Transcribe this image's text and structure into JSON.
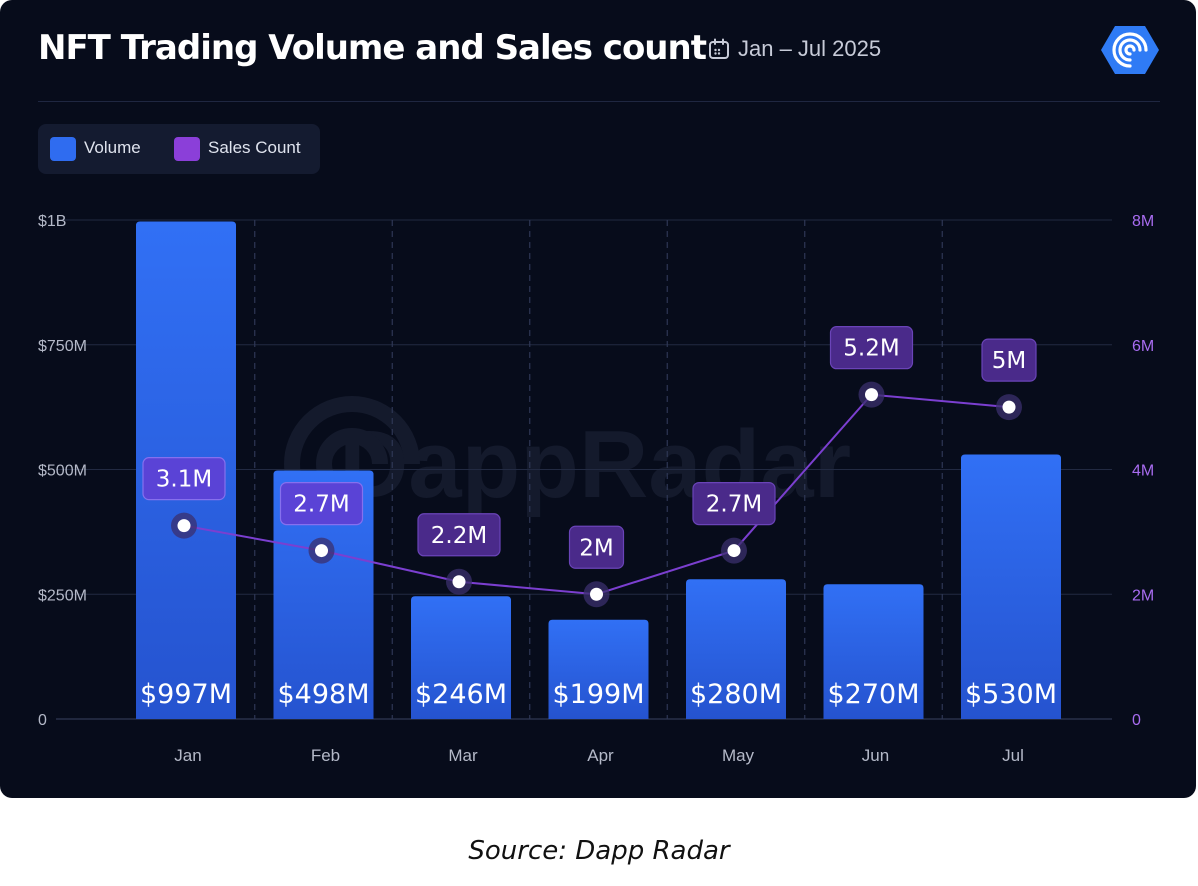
{
  "header": {
    "title": "NFT Trading Volume and Sales count",
    "date_range": "Jan – Jul 2025",
    "calendar_icon": "calendar-icon",
    "logo_icon": "dappradar-logo-icon"
  },
  "legend": {
    "items": [
      {
        "label": "Volume",
        "color": "#2f6cf0"
      },
      {
        "label": "Sales Count",
        "color": "#8b3fd9"
      }
    ]
  },
  "watermark": "DappRadar",
  "source": "Source: Dapp Radar",
  "chart_data": {
    "type": "bar",
    "categories": [
      "Jan",
      "Feb",
      "Mar",
      "Apr",
      "May",
      "Jun",
      "Jul"
    ],
    "series": [
      {
        "name": "Volume",
        "type": "bar",
        "axis": "left",
        "values": [
          997000000,
          498000000,
          246000000,
          199000000,
          280000000,
          270000000,
          530000000
        ],
        "labels": [
          "$997M",
          "$498M",
          "$246M",
          "$199M",
          "$280M",
          "$270M",
          "$530M"
        ],
        "color": "#2f6cf0"
      },
      {
        "name": "Sales Count",
        "type": "line",
        "axis": "right",
        "values": [
          3100000,
          2700000,
          2200000,
          2000000,
          2700000,
          5200000,
          5000000
        ],
        "labels": [
          "3.1M",
          "2.7M",
          "2.2M",
          "2M",
          "2.7M",
          "5.2M",
          "5M"
        ],
        "color": "#7b3fd0"
      }
    ],
    "y_left": {
      "min": 0,
      "max": 1000000000,
      "ticks": [
        0,
        250000000,
        500000000,
        750000000,
        1000000000
      ],
      "tick_labels": [
        "0",
        "$250M",
        "$500M",
        "$750M",
        "$1B"
      ]
    },
    "y_right": {
      "min": 0,
      "max": 8000000,
      "ticks": [
        0,
        2000000,
        4000000,
        6000000,
        8000000
      ],
      "tick_labels": [
        "0",
        "2M",
        "4M",
        "6M",
        "8M"
      ]
    },
    "grid": true,
    "legend_position": "top-left"
  }
}
